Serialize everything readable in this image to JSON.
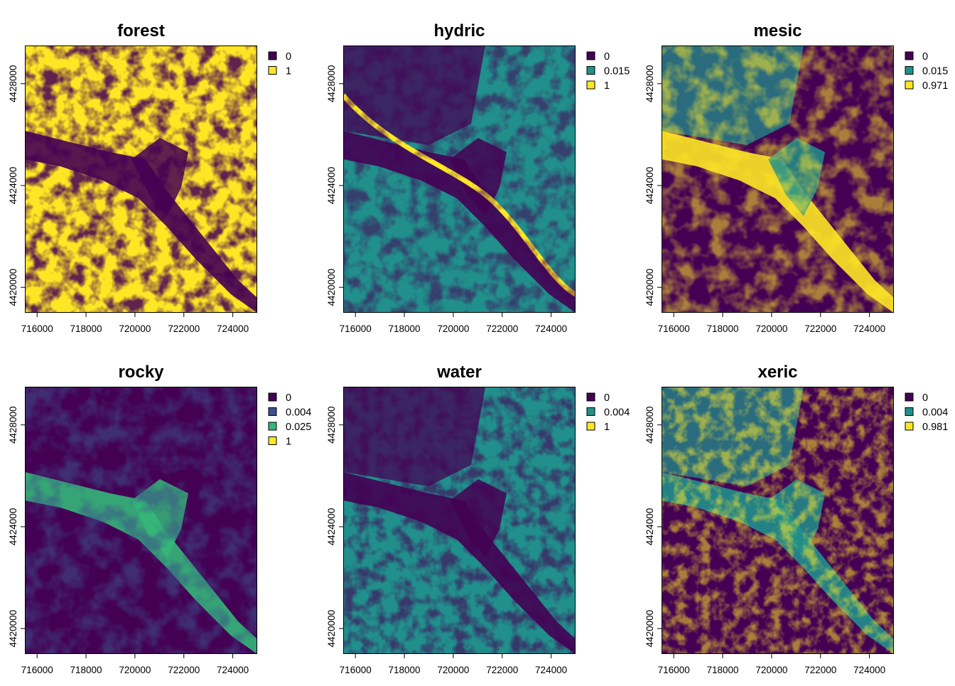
{
  "colors": {
    "purple": "#440154",
    "blue": "#3b528b",
    "teal": "#21908c",
    "green": "#35b779",
    "yellow": "#fde725",
    "frame": "#000000"
  },
  "chart_data": [
    {
      "type": "heatmap",
      "title": "forest",
      "xlim": [
        715500,
        725000
      ],
      "ylim": [
        4419000,
        4429500
      ],
      "x_ticks": [
        "716000",
        "718000",
        "720000",
        "722000",
        "724000"
      ],
      "y_ticks": [
        "4420000",
        "4424000",
        "4428000"
      ],
      "legend_position": "right",
      "legend": [
        {
          "label": "0",
          "color": "#440154"
        },
        {
          "label": "1",
          "color": "#fde725"
        }
      ]
    },
    {
      "type": "heatmap",
      "title": "hydric",
      "xlim": [
        715500,
        725000
      ],
      "ylim": [
        4419000,
        4429500
      ],
      "x_ticks": [
        "716000",
        "718000",
        "720000",
        "722000",
        "724000"
      ],
      "y_ticks": [
        "4420000",
        "4424000",
        "4428000"
      ],
      "legend_position": "right",
      "legend": [
        {
          "label": "0",
          "color": "#440154"
        },
        {
          "label": "0.015",
          "color": "#21908c"
        },
        {
          "label": "1",
          "color": "#fde725"
        }
      ]
    },
    {
      "type": "heatmap",
      "title": "mesic",
      "xlim": [
        715500,
        725000
      ],
      "ylim": [
        4419000,
        4429500
      ],
      "x_ticks": [
        "716000",
        "718000",
        "720000",
        "722000",
        "724000"
      ],
      "y_ticks": [
        "4420000",
        "4424000",
        "4428000"
      ],
      "legend_position": "right",
      "legend": [
        {
          "label": "0",
          "color": "#440154"
        },
        {
          "label": "0.015",
          "color": "#21908c"
        },
        {
          "label": "0.971",
          "color": "#fde725"
        }
      ]
    },
    {
      "type": "heatmap",
      "title": "rocky",
      "xlim": [
        715500,
        725000
      ],
      "ylim": [
        4419000,
        4429500
      ],
      "x_ticks": [
        "716000",
        "718000",
        "720000",
        "722000",
        "724000"
      ],
      "y_ticks": [
        "4420000",
        "4424000",
        "4428000"
      ],
      "legend_position": "right",
      "legend": [
        {
          "label": "0",
          "color": "#440154"
        },
        {
          "label": "0.004",
          "color": "#3b528b"
        },
        {
          "label": "0.025",
          "color": "#35b779"
        },
        {
          "label": "1",
          "color": "#fde725"
        }
      ]
    },
    {
      "type": "heatmap",
      "title": "water",
      "xlim": [
        715500,
        725000
      ],
      "ylim": [
        4419000,
        4429500
      ],
      "x_ticks": [
        "716000",
        "718000",
        "720000",
        "722000",
        "724000"
      ],
      "y_ticks": [
        "4420000",
        "4424000",
        "4428000"
      ],
      "legend_position": "right",
      "legend": [
        {
          "label": "0",
          "color": "#440154"
        },
        {
          "label": "0.004",
          "color": "#21908c"
        },
        {
          "label": "1",
          "color": "#fde725"
        }
      ]
    },
    {
      "type": "heatmap",
      "title": "xeric",
      "xlim": [
        715500,
        725000
      ],
      "ylim": [
        4419000,
        4429500
      ],
      "x_ticks": [
        "716000",
        "718000",
        "720000",
        "722000",
        "724000"
      ],
      "y_ticks": [
        "4420000",
        "4424000",
        "4428000"
      ],
      "legend_position": "right",
      "legend": [
        {
          "label": "0",
          "color": "#440154"
        },
        {
          "label": "0.004",
          "color": "#21908c"
        },
        {
          "label": "0.981",
          "color": "#fde725"
        }
      ]
    }
  ]
}
